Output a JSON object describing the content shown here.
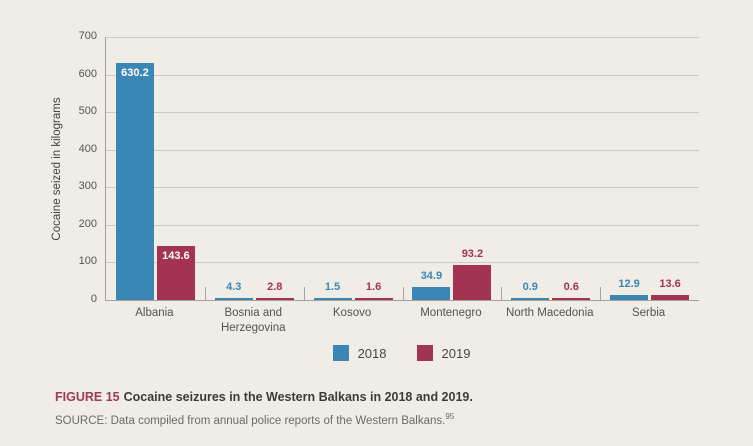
{
  "chart_data": {
    "type": "bar",
    "title": "Cocaine seizures in the Western Balkans in 2018 and 2019",
    "ylabel": "Cocaine seized in kilograms",
    "ylim": [
      0,
      700
    ],
    "ytick_interval": 100,
    "yticks": [
      0,
      100,
      200,
      300,
      400,
      500,
      600,
      700
    ],
    "grid": "horizontal",
    "legend_position": "bottom",
    "categories": [
      "Albania",
      "Bosnia and Herzegovina",
      "Kosovo",
      "Montenegro",
      "North Macedonia",
      "Serbia"
    ],
    "categories_display": [
      [
        "Albania"
      ],
      [
        "Bosnia and",
        "Herzegovina"
      ],
      [
        "Kosovo"
      ],
      [
        "Montenegro"
      ],
      [
        "North Macedonia"
      ],
      [
        "Serbia"
      ]
    ],
    "series": [
      {
        "name": "2018",
        "color": "#3a86b5",
        "values": [
          630.2,
          4.3,
          1.5,
          34.9,
          0.9,
          12.9
        ]
      },
      {
        "name": "2019",
        "color": "#a23351",
        "values": [
          143.6,
          2.8,
          1.6,
          93.2,
          0.6,
          13.6
        ]
      }
    ]
  },
  "caption": {
    "figure_label": "FIGURE 15",
    "figure_title": "Cocaine seizures in the Western Balkans in 2018 and 2019.",
    "source_text": "SOURCE: Data compiled from annual police reports of the Western Balkans.",
    "source_note_ref": "95"
  },
  "colors": {
    "background": "#f0ede7",
    "bar_2018": "#3a86b5",
    "bar_2019": "#a23351",
    "gridline": "#cdc9c3",
    "axis": "#a3a099",
    "figure_label": "#9e3a55"
  }
}
